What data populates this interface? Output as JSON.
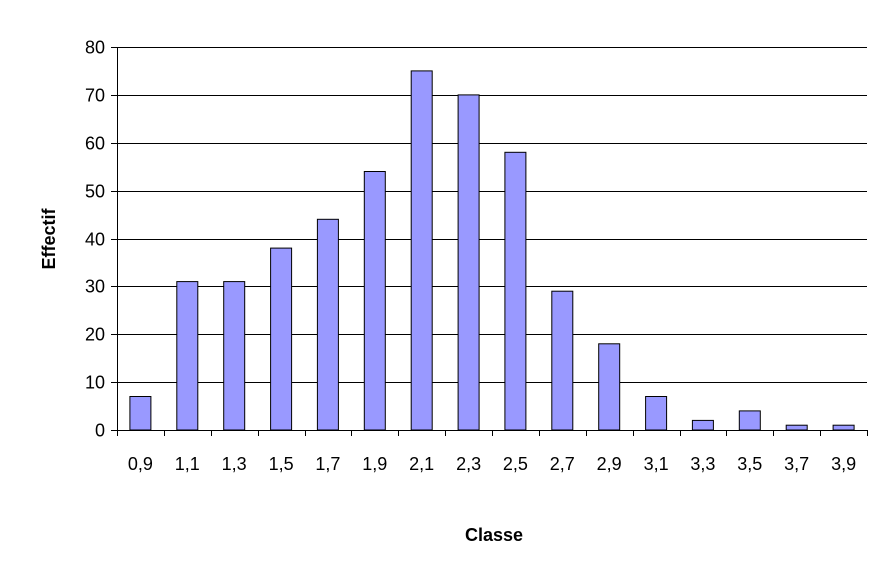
{
  "chart_data": {
    "type": "bar",
    "title": "",
    "xlabel": "Classe",
    "ylabel": "Effectif",
    "categories": [
      "0,9",
      "1,1",
      "1,3",
      "1,5",
      "1,7",
      "1,9",
      "2,1",
      "2,3",
      "2,5",
      "2,7",
      "2,9",
      "3,1",
      "3,3",
      "3,5",
      "3,7",
      "3,9"
    ],
    "values": [
      7,
      31,
      31,
      38,
      44,
      54,
      75,
      70,
      58,
      29,
      18,
      7,
      2,
      4,
      1,
      1
    ],
    "ylim": [
      0,
      80
    ],
    "yticks": [
      0,
      10,
      20,
      30,
      40,
      50,
      60,
      70,
      80
    ],
    "grid": true,
    "legend": "none",
    "colors": {
      "bar_fill": "#9999ff",
      "bar_stroke": "#000000",
      "grid": "#000000",
      "axis": "#000000",
      "background": "#ffffff"
    }
  }
}
